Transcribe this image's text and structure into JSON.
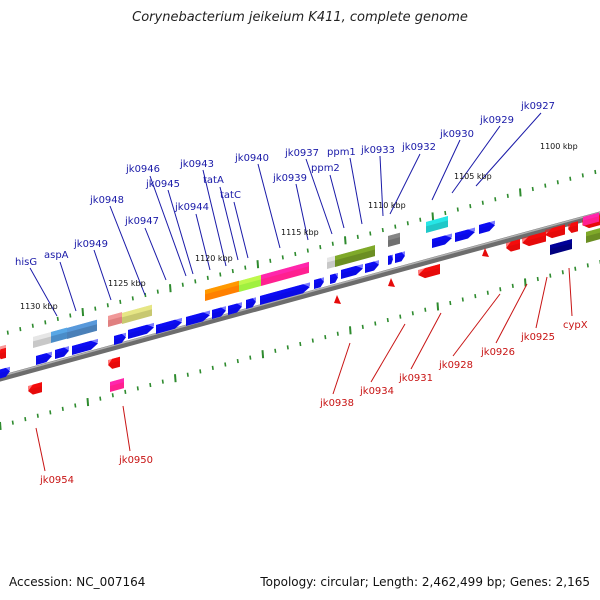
{
  "header": {
    "title": "Corynebacterium jeikeium K411, complete genome"
  },
  "footer": {
    "accession": "Accession: NC_007164",
    "summary": "Topology: circular; Length: 2,462,499 bp; Genes: 2,165"
  },
  "kbp_labels": [
    "1100 kbp",
    "1105 kbp",
    "1110 kbp",
    "1115 kbp",
    "1120 kbp",
    "1125 kbp",
    "1130 kbp"
  ],
  "top_labels": [
    "hisG",
    "aspA",
    "jk0949",
    "jk0948",
    "jk0947",
    "jk0946",
    "jk0945",
    "jk0944",
    "jk0943",
    "tatA",
    "tatC",
    "jk0940",
    "jk0939",
    "jk0937",
    "ppm2",
    "ppm1",
    "jk0933",
    "jk0932",
    "jk0930",
    "jk0929",
    "jk0927"
  ],
  "bottom_labels": [
    "jk0954",
    "jk0950",
    "jk0938",
    "jk0934",
    "jk0931",
    "jk0928",
    "jk0926",
    "jk0925",
    "cypX"
  ],
  "colors": {
    "forward_arrow": "#0a0ae6",
    "reverse_arrow": "#e60a0a",
    "top_label": "#1a1aa8",
    "bottom_label": "#c81414",
    "tick": "#2e8b2e",
    "backbone": "#808080"
  }
}
